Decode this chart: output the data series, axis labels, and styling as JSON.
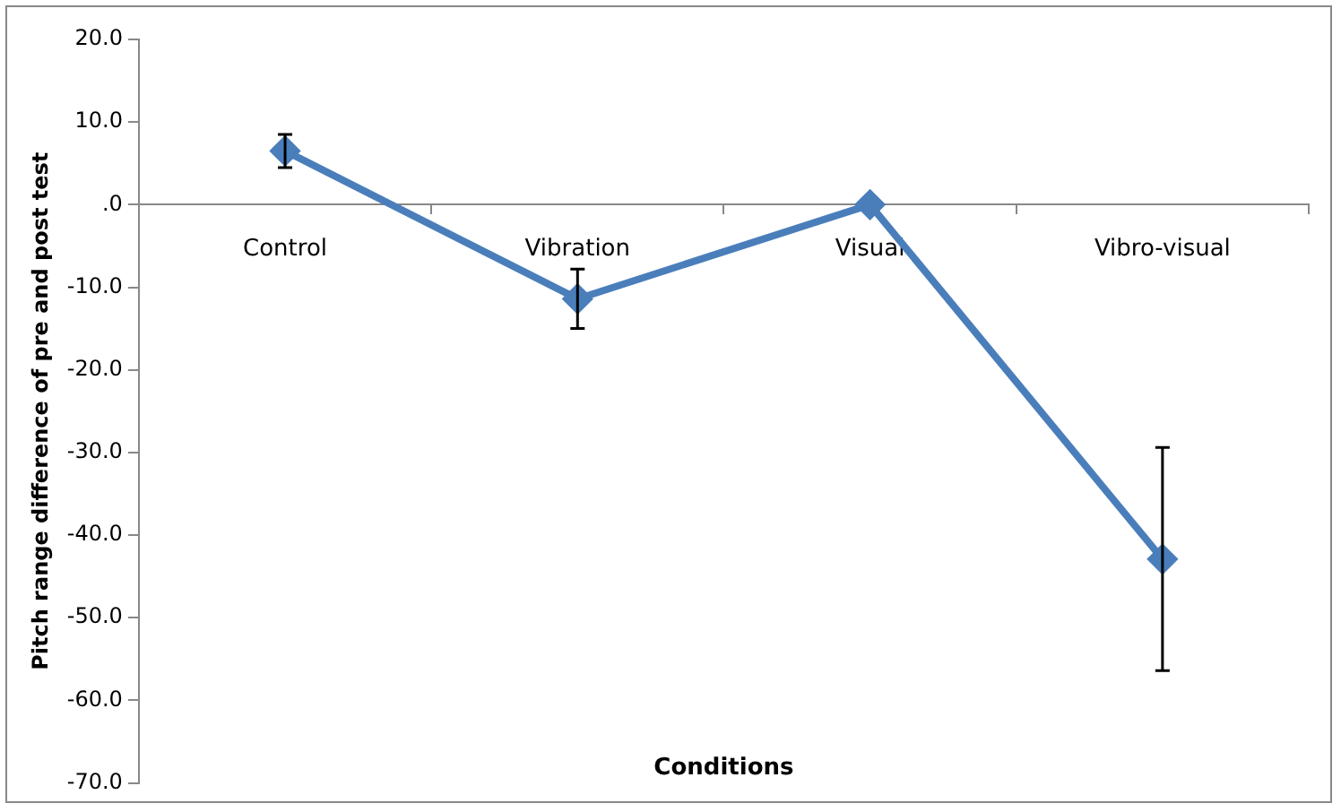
{
  "chart_data": {
    "type": "line",
    "xlabel": "Conditions",
    "ylabel": "Pitch range difference of pre and post test",
    "categories": [
      "Control",
      "Vibration",
      "Visual",
      "Vibro-visual"
    ],
    "series": [
      {
        "color": "#4a7ebb",
        "values": [
          6.5,
          -11.4,
          0,
          -42.9
        ],
        "errors": [
          2,
          3.6,
          null,
          13.5
        ]
      }
    ],
    "ylim": [
      -70,
      20
    ],
    "yticks": [
      {
        "value": -70,
        "label": "-70.0"
      },
      {
        "value": -60,
        "label": "-60.0"
      },
      {
        "value": -50,
        "label": "-50.0"
      },
      {
        "value": -40,
        "label": "-40.0"
      },
      {
        "value": -30,
        "label": "-30.0"
      },
      {
        "value": -20,
        "label": "-20.0"
      },
      {
        "value": -10,
        "label": "-10.0"
      },
      {
        "value": 0,
        "label": ".0"
      },
      {
        "value": 10,
        "label": "10.0"
      },
      {
        "value": 20,
        "label": "20.0"
      }
    ],
    "grid": false,
    "legend": false,
    "marker": "diamond",
    "line_style": "solid"
  }
}
